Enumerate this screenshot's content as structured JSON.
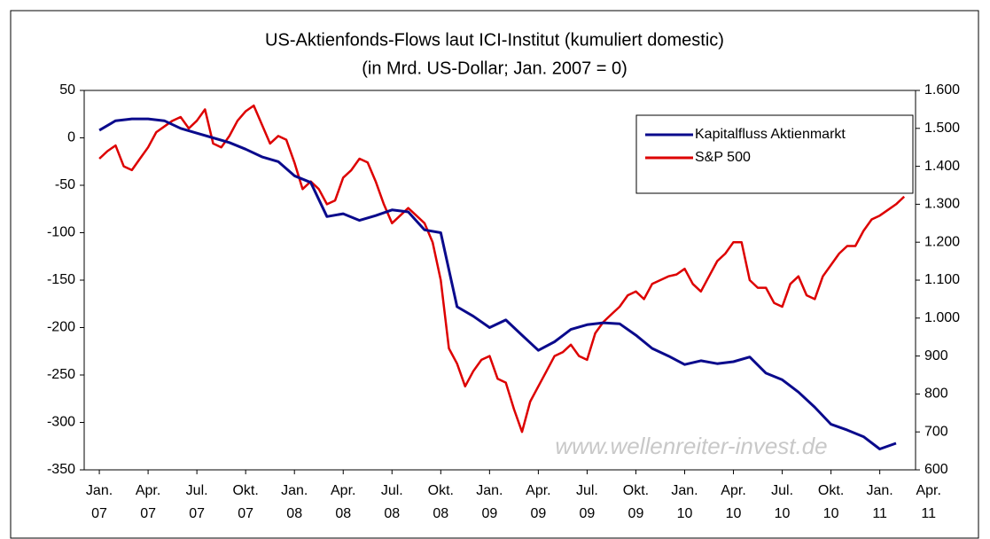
{
  "chart_data": {
    "type": "line",
    "title": "US-Aktienfonds-Flows laut ICI-Institut (kumuliert domestic)",
    "subtitle": "(in Mrd. US-Dollar; Jan. 2007 = 0)",
    "watermark": "www.wellenreiter-invest.de",
    "legend": "upper right",
    "xlim": [
      -0.93,
      50.2
    ],
    "xticks": [
      {
        "value": 0,
        "label": [
          "Jan.",
          "07"
        ]
      },
      {
        "value": 3,
        "label": [
          "Apr.",
          "07"
        ]
      },
      {
        "value": 6,
        "label": [
          "Jul.",
          "07"
        ]
      },
      {
        "value": 9,
        "label": [
          "Okt.",
          "07"
        ]
      },
      {
        "value": 12,
        "label": [
          "Jan.",
          "08"
        ]
      },
      {
        "value": 15,
        "label": [
          "Apr.",
          "08"
        ]
      },
      {
        "value": 18,
        "label": [
          "Jul.",
          "08"
        ]
      },
      {
        "value": 21,
        "label": [
          "Okt.",
          "08"
        ]
      },
      {
        "value": 24,
        "label": [
          "Jan.",
          "09"
        ]
      },
      {
        "value": 27,
        "label": [
          "Apr.",
          "09"
        ]
      },
      {
        "value": 30,
        "label": [
          "Jul.",
          "09"
        ]
      },
      {
        "value": 33,
        "label": [
          "Okt.",
          "09"
        ]
      },
      {
        "value": 36,
        "label": [
          "Jan.",
          "10"
        ]
      },
      {
        "value": 39,
        "label": [
          "Apr.",
          "10"
        ]
      },
      {
        "value": 42,
        "label": [
          "Jul.",
          "10"
        ]
      },
      {
        "value": 45,
        "label": [
          "Okt.",
          "10"
        ]
      },
      {
        "value": 48,
        "label": [
          "Jan.",
          "11"
        ]
      },
      {
        "value": 51,
        "label": [
          "Apr.",
          "11"
        ]
      }
    ],
    "ylim": [
      -350,
      50
    ],
    "yticks": [
      50,
      0,
      -50,
      -100,
      -150,
      -200,
      -250,
      -300,
      -350
    ],
    "y2lim": [
      600,
      1600
    ],
    "y2ticks": [
      {
        "value": 1600,
        "label": "1.600"
      },
      {
        "value": 1500,
        "label": "1.500"
      },
      {
        "value": 1400,
        "label": "1.400"
      },
      {
        "value": 1300,
        "label": "1.300"
      },
      {
        "value": 1200,
        "label": "1.200"
      },
      {
        "value": 1100,
        "label": "1.100"
      },
      {
        "value": 1000,
        "label": "1.000"
      },
      900,
      800,
      700,
      600
    ],
    "series": [
      {
        "name": "Kapitalfluss Aktienmarkt",
        "color": "#0a0a8c",
        "axis": "y",
        "x": [
          0,
          1,
          2,
          3,
          4,
          5,
          6,
          7,
          8,
          9,
          10,
          11,
          12,
          13,
          14,
          15,
          16,
          17,
          18,
          19,
          20,
          21,
          22,
          23,
          24,
          25,
          26,
          27,
          28,
          29,
          30,
          31,
          32,
          33,
          34,
          35,
          36,
          37,
          38,
          39,
          40,
          41,
          42,
          43,
          44,
          45,
          46,
          47,
          48,
          49
        ],
        "values": [
          8,
          18,
          20,
          20,
          18,
          10,
          5,
          0,
          -5,
          -12,
          -20,
          -25,
          -40,
          -47,
          -83,
          -80,
          -87,
          -82,
          -76,
          -78,
          -97,
          -100,
          -178,
          -188,
          -200,
          -192,
          -208,
          -224,
          -215,
          -202,
          -197,
          -195,
          -196,
          -208,
          -222,
          -230,
          -239,
          -235,
          -238,
          -236,
          -231,
          -248,
          -255,
          -268,
          -284,
          -302,
          -308,
          -315,
          -328,
          -322
        ]
      },
      {
        "name": "S&P 500",
        "color": "#dd0000",
        "axis": "y2",
        "x": [
          0,
          0.5,
          1,
          1.5,
          2,
          2.5,
          3,
          3.5,
          4,
          4.5,
          5,
          5.5,
          6,
          6.5,
          7,
          7.5,
          8,
          8.5,
          9,
          9.5,
          10,
          10.5,
          11,
          11.5,
          12,
          12.5,
          13,
          13.5,
          14,
          14.5,
          15,
          15.5,
          16,
          16.5,
          17,
          17.5,
          18,
          18.5,
          19,
          19.5,
          20,
          20.5,
          21,
          21.5,
          22,
          22.5,
          23,
          23.5,
          24,
          24.5,
          25,
          25.5,
          26,
          26.5,
          27,
          27.5,
          28,
          28.5,
          29,
          29.5,
          30,
          30.5,
          31,
          31.5,
          32,
          32.5,
          33,
          33.5,
          34,
          34.5,
          35,
          35.5,
          36,
          36.5,
          37,
          37.5,
          38,
          38.5,
          39,
          39.5,
          40,
          40.5,
          41,
          41.5,
          42,
          42.5,
          43,
          43.5,
          44,
          44.5,
          45,
          45.5,
          46,
          46.5,
          47,
          47.5,
          48,
          48.5,
          49,
          49.5
        ],
        "values": [
          1420,
          1440,
          1455,
          1400,
          1390,
          1420,
          1450,
          1490,
          1505,
          1520,
          1530,
          1500,
          1520,
          1550,
          1460,
          1450,
          1480,
          1520,
          1545,
          1560,
          1510,
          1460,
          1480,
          1470,
          1410,
          1340,
          1360,
          1340,
          1300,
          1310,
          1370,
          1390,
          1420,
          1410,
          1360,
          1300,
          1250,
          1270,
          1290,
          1270,
          1250,
          1200,
          1100,
          920,
          880,
          820,
          860,
          890,
          900,
          840,
          830,
          760,
          700,
          780,
          820,
          860,
          900,
          910,
          930,
          900,
          890,
          960,
          990,
          1010,
          1030,
          1060,
          1070,
          1050,
          1090,
          1100,
          1110,
          1115,
          1130,
          1090,
          1070,
          1110,
          1150,
          1170,
          1200,
          1200,
          1100,
          1080,
          1080,
          1040,
          1030,
          1090,
          1110,
          1060,
          1050,
          1110,
          1140,
          1170,
          1190,
          1190,
          1230,
          1260,
          1270,
          1285,
          1300,
          1320
        ]
      }
    ]
  }
}
